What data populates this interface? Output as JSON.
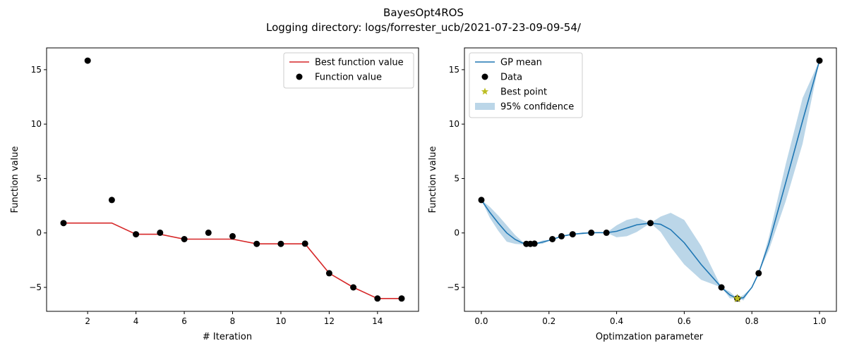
{
  "figure": {
    "title": "BayesOpt4ROS",
    "subtitle": "Logging directory: logs/forrester_ucb/2021-07-23-09-09-54/"
  },
  "chart_data": [
    {
      "type": "line",
      "xlabel": "# Iteration",
      "ylabel": "Function value",
      "xlim": [
        0.3,
        15.7
      ],
      "ylim": [
        -7.2,
        17.0
      ],
      "xticks": [
        2,
        4,
        6,
        8,
        10,
        12,
        14
      ],
      "yticks": [
        -5,
        0,
        5,
        10,
        15
      ],
      "legend_position": "upper right",
      "series": [
        {
          "name": "Best function value",
          "kind": "line",
          "color": "#d62728",
          "x": [
            1,
            2,
            3,
            4,
            5,
            6,
            7,
            8,
            9,
            10,
            11,
            12,
            13,
            14,
            15
          ],
          "y": [
            0.91,
            0.91,
            0.91,
            -0.12,
            -0.12,
            -0.57,
            -0.57,
            -0.57,
            -1.0,
            -1.0,
            -1.0,
            -3.7,
            -5.0,
            -6.02,
            -6.02
          ]
        },
        {
          "name": "Function value",
          "kind": "scatter",
          "color": "#000000",
          "x": [
            1,
            2,
            3,
            4,
            5,
            6,
            7,
            8,
            9,
            10,
            11,
            12,
            13,
            14,
            15
          ],
          "y": [
            0.91,
            15.83,
            3.03,
            -0.12,
            0.02,
            -0.57,
            0.02,
            -0.3,
            -1.0,
            -1.0,
            -0.98,
            -3.7,
            -5.0,
            -6.02,
            -6.02
          ]
        }
      ]
    },
    {
      "type": "line",
      "xlabel": "Optimzation parameter",
      "ylabel": "Function value",
      "xlim": [
        -0.05,
        1.05
      ],
      "ylim": [
        -7.2,
        17.0
      ],
      "xticks": [
        0.0,
        0.2,
        0.4,
        0.6,
        0.8,
        1.0
      ],
      "yticks": [
        -5,
        0,
        5,
        10,
        15
      ],
      "legend_position": "upper left",
      "series": [
        {
          "name": "GP mean",
          "kind": "line",
          "color": "#1f77b4",
          "x": [
            0.0,
            0.025,
            0.05,
            0.075,
            0.1,
            0.12,
            0.133,
            0.145,
            0.157,
            0.18,
            0.21,
            0.237,
            0.27,
            0.3,
            0.325,
            0.35,
            0.37,
            0.4,
            0.43,
            0.46,
            0.5,
            0.53,
            0.56,
            0.6,
            0.65,
            0.71,
            0.735,
            0.757,
            0.775,
            0.8,
            0.82,
            0.85,
            0.9,
            0.95,
            1.0
          ],
          "y": [
            3.03,
            1.9,
            0.9,
            0.0,
            -0.6,
            -0.9,
            -1.0,
            -1.0,
            -1.0,
            -0.85,
            -0.6,
            -0.3,
            -0.12,
            -0.03,
            0.02,
            0.03,
            0.02,
            0.15,
            0.45,
            0.75,
            0.91,
            0.8,
            0.3,
            -0.9,
            -2.9,
            -5.0,
            -5.7,
            -6.02,
            -5.95,
            -5.0,
            -3.7,
            -1.0,
            4.6,
            10.3,
            15.83
          ]
        },
        {
          "name": "Data",
          "kind": "scatter",
          "color": "#000000",
          "x": [
            0.0,
            0.133,
            0.145,
            0.157,
            0.21,
            0.237,
            0.27,
            0.325,
            0.37,
            0.5,
            0.71,
            0.757,
            0.82,
            1.0
          ],
          "y": [
            3.03,
            -1.0,
            -1.0,
            -0.98,
            -0.57,
            -0.3,
            -0.12,
            0.02,
            0.02,
            0.91,
            -5.0,
            -6.02,
            -3.7,
            15.83
          ]
        },
        {
          "name": "Best point",
          "kind": "star",
          "color": "#bcbd22",
          "x": [
            0.757
          ],
          "y": [
            -6.02
          ]
        },
        {
          "name": "95% confidence",
          "kind": "band",
          "color": "#1f77b4",
          "alpha": 0.3,
          "x": [
            0.0,
            0.025,
            0.05,
            0.075,
            0.1,
            0.12,
            0.133,
            0.145,
            0.157,
            0.18,
            0.21,
            0.237,
            0.27,
            0.3,
            0.325,
            0.35,
            0.37,
            0.4,
            0.43,
            0.46,
            0.5,
            0.53,
            0.56,
            0.6,
            0.65,
            0.71,
            0.735,
            0.757,
            0.775,
            0.8,
            0.82,
            0.85,
            0.9,
            0.95,
            1.0
          ],
          "upper": [
            3.03,
            2.4,
            1.6,
            0.7,
            -0.2,
            -0.75,
            -1.0,
            -1.0,
            -1.0,
            -0.7,
            -0.6,
            -0.3,
            -0.12,
            0.05,
            0.02,
            0.07,
            0.02,
            0.7,
            1.2,
            1.4,
            0.91,
            1.5,
            1.85,
            1.2,
            -1.2,
            -5.0,
            -5.4,
            -6.02,
            -5.7,
            -5.0,
            -3.7,
            -0.4,
            6.3,
            12.4,
            15.83
          ],
          "lower": [
            3.03,
            1.4,
            0.2,
            -0.8,
            -1.0,
            -1.05,
            -1.0,
            -1.0,
            -1.0,
            -1.0,
            -0.6,
            -0.3,
            -0.12,
            -0.12,
            0.02,
            -0.01,
            0.02,
            -0.4,
            -0.3,
            0.1,
            0.91,
            0.1,
            -1.3,
            -2.9,
            -4.3,
            -5.0,
            -6.0,
            -6.02,
            -6.2,
            -5.0,
            -3.7,
            -1.6,
            2.9,
            8.2,
            15.83
          ]
        }
      ]
    }
  ]
}
